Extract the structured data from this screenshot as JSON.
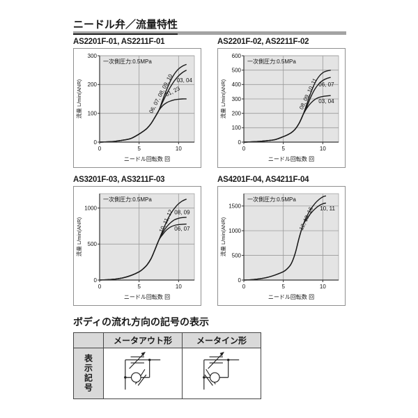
{
  "page": {
    "title": "ニードル弁／流量特性"
  },
  "chart_data": [
    {
      "type": "line",
      "title": "AS2201F-01, AS2211F-01",
      "annotation": "一次側圧力:0.5MPa",
      "xlabel": "ニードル回転数 回",
      "ylabel": "流量 L/min(ANR)",
      "xlim": [
        0,
        12
      ],
      "ylim": [
        0,
        300
      ],
      "xticks": [
        0,
        5,
        10
      ],
      "yticks": [
        0,
        100,
        200,
        300
      ],
      "grid": true,
      "legend_position": "on-curve",
      "series": [
        {
          "name": "06, 07, 08, 09, 10",
          "x": [
            0,
            1,
            2,
            3,
            4,
            5,
            5.5,
            6,
            6.5,
            7,
            7.5,
            8,
            8.5,
            9,
            9.5,
            10,
            10.5,
            11
          ],
          "y": [
            0,
            1,
            3,
            7,
            13,
            28,
            37,
            48,
            64,
            86,
            110,
            148,
            183,
            214,
            238,
            254,
            264,
            270
          ]
        },
        {
          "name": "03, 04",
          "x": [
            0,
            1,
            2,
            3,
            4,
            5,
            5.5,
            6,
            6.5,
            7,
            7.5,
            8,
            8.5,
            9,
            9.5,
            10,
            10.5,
            11
          ],
          "y": [
            0,
            1,
            3,
            7,
            13,
            28,
            37,
            48,
            64,
            86,
            110,
            140,
            168,
            193,
            214,
            230,
            242,
            250
          ]
        },
        {
          "name": "01, 23",
          "x": [
            0,
            1,
            2,
            3,
            4,
            5,
            5.5,
            6,
            6.5,
            7,
            7.5,
            8,
            8.5,
            9,
            9.5,
            10,
            10.5,
            11
          ],
          "y": [
            0,
            1,
            3,
            7,
            13,
            28,
            37,
            48,
            64,
            86,
            110,
            127,
            137,
            143,
            147,
            149,
            150,
            150
          ]
        }
      ],
      "labels": [
        {
          "text": "06, 07, 08, 09, 10",
          "x": 7.95,
          "y": 165,
          "rot": -62
        },
        {
          "text": "03, 04",
          "x": 10.75,
          "y": 208,
          "rot": 0
        },
        {
          "text": "01, 23",
          "x": 9.35,
          "y": 170,
          "rot": -27
        }
      ]
    },
    {
      "type": "line",
      "title": "AS2201F-02, AS2211F-02",
      "annotation": "一次側圧力:0.5MPa",
      "xlabel": "ニードル回転数 回",
      "ylabel": "流量 L/min(ANR)",
      "xlim": [
        0,
        12
      ],
      "ylim": [
        0,
        600
      ],
      "xticks": [
        0,
        5,
        10
      ],
      "yticks": [
        0,
        100,
        200,
        300,
        400,
        500,
        600
      ],
      "grid": true,
      "legend_position": "on-curve",
      "series": [
        {
          "name": "08, 09, 10, 11",
          "x": [
            0,
            1,
            2,
            3,
            4,
            5,
            5.5,
            6,
            6.5,
            7,
            7.5,
            8,
            8.5,
            9,
            9.5,
            10,
            10.5,
            11
          ],
          "y": [
            0,
            2,
            5,
            10,
            18,
            38,
            50,
            65,
            90,
            130,
            190,
            268,
            345,
            410,
            455,
            482,
            494,
            500
          ]
        },
        {
          "name": "06, 07",
          "x": [
            0,
            1,
            2,
            3,
            4,
            5,
            5.5,
            6,
            6.5,
            7,
            7.5,
            8,
            8.5,
            9,
            9.5,
            10,
            10.5,
            11
          ],
          "y": [
            0,
            2,
            5,
            10,
            18,
            38,
            50,
            65,
            90,
            130,
            190,
            250,
            315,
            368,
            405,
            428,
            442,
            450
          ]
        },
        {
          "name": "03, 04",
          "x": [
            0,
            1,
            2,
            3,
            4,
            5,
            5.5,
            6,
            6.5,
            7,
            7.5,
            8,
            8.5,
            9,
            9.5,
            10,
            10.5,
            11
          ],
          "y": [
            0,
            2,
            5,
            10,
            18,
            38,
            50,
            65,
            90,
            130,
            190,
            238,
            272,
            296,
            310,
            317,
            321,
            323
          ]
        }
      ],
      "labels": [
        {
          "text": "08, 09, 10, 11",
          "x": 8.35,
          "y": 330,
          "rot": -65
        },
        {
          "text": "06, 07",
          "x": 10.45,
          "y": 388,
          "rot": 0
        },
        {
          "text": "03, 04",
          "x": 10.45,
          "y": 272,
          "rot": 0
        }
      ]
    },
    {
      "type": "line",
      "title": "AS3201F-03, AS3211F-03",
      "annotation": "一次側圧力:0.5MPa",
      "xlabel": "ニードル回転数 回",
      "ylabel": "流量 L/min(ANR)",
      "xlim": [
        0,
        12
      ],
      "ylim": [
        0,
        1200
      ],
      "xticks": [
        0,
        5,
        10
      ],
      "yticks": [
        0,
        500,
        1000
      ],
      "grid": true,
      "legend_position": "on-curve",
      "series": [
        {
          "name": "10, 11, 12",
          "x": [
            0,
            1,
            2,
            3,
            4,
            5,
            5.5,
            6,
            6.5,
            7,
            7.5,
            8,
            8.5,
            9,
            9.5,
            10,
            10.5,
            11
          ],
          "y": [
            0,
            5,
            14,
            32,
            65,
            115,
            155,
            210,
            295,
            420,
            555,
            690,
            815,
            920,
            1000,
            1060,
            1100,
            1125
          ]
        },
        {
          "name": "08, 09",
          "x": [
            0,
            1,
            2,
            3,
            4,
            5,
            5.5,
            6,
            6.5,
            7,
            7.5,
            8,
            8.5,
            9,
            9.5,
            10,
            10.5,
            11
          ],
          "y": [
            0,
            5,
            14,
            32,
            65,
            115,
            155,
            210,
            295,
            420,
            555,
            660,
            740,
            798,
            838,
            858,
            868,
            872
          ]
        },
        {
          "name": "06, 07",
          "x": [
            0,
            1,
            2,
            3,
            4,
            5,
            5.5,
            6,
            6.5,
            7,
            7.5,
            8,
            8.5,
            9,
            9.5,
            10,
            10.5,
            11
          ],
          "y": [
            0,
            5,
            14,
            32,
            65,
            115,
            155,
            210,
            295,
            420,
            555,
            635,
            698,
            738,
            760,
            770,
            775,
            778
          ]
        }
      ],
      "labels": [
        {
          "text": "10, 11, 12",
          "x": 8.6,
          "y": 810,
          "rot": -65
        },
        {
          "text": "08, 09",
          "x": 10.45,
          "y": 915,
          "rot": 0
        },
        {
          "text": "06, 07",
          "x": 10.45,
          "y": 688,
          "rot": 0
        }
      ]
    },
    {
      "type": "line",
      "title": "AS4201F-04, AS4211F-04",
      "annotation": "一次側圧力:0.5MPa",
      "xlabel": "ニードル回転数 回",
      "ylabel": "流量 L/min(ANR)",
      "xlim": [
        0,
        12
      ],
      "ylim": [
        0,
        1750
      ],
      "xticks": [
        0,
        5,
        10
      ],
      "yticks": [
        0,
        500,
        1000,
        1500
      ],
      "grid": true,
      "legend_position": "on-curve",
      "series": [
        {
          "name": "12, 13, 16",
          "x": [
            0,
            1,
            2,
            3,
            4,
            5,
            5.5,
            6,
            6.5,
            7,
            7.5,
            8,
            8.5,
            9,
            9.5,
            10,
            10.4
          ],
          "y": [
            0,
            8,
            25,
            55,
            105,
            170,
            230,
            330,
            540,
            850,
            1115,
            1300,
            1440,
            1550,
            1630,
            1685,
            1705
          ]
        },
        {
          "name": "10, 11",
          "x": [
            0,
            1,
            2,
            3,
            4,
            5,
            5.5,
            6,
            6.5,
            7,
            7.5,
            8,
            8.5,
            9,
            9.5,
            10,
            10.4
          ],
          "y": [
            0,
            8,
            25,
            55,
            105,
            170,
            230,
            330,
            540,
            850,
            1115,
            1245,
            1355,
            1440,
            1505,
            1545,
            1560
          ]
        }
      ],
      "labels": [
        {
          "text": "12, 13, 16",
          "x": 8.1,
          "y": 1230,
          "rot": -65
        },
        {
          "text": "10, 11",
          "x": 10.6,
          "y": 1410,
          "rot": 0
        }
      ]
    }
  ],
  "symbol_section": {
    "title": "ボディの流れ方向の記号の表示",
    "row_header": "表示記号",
    "columns": [
      "メータアウト形",
      "メータイン形"
    ],
    "symbols": [
      "meter-out-flow-control",
      "meter-in-flow-control"
    ]
  },
  "style": {
    "plot_bg": "#e4e4e4",
    "grid_color": "#9a9a9a",
    "axis_color": "#333333",
    "curve_color": "#1a1a1a",
    "header_bar_color": "#a3a3a3",
    "table_header_bg": "#d9d9d9"
  }
}
